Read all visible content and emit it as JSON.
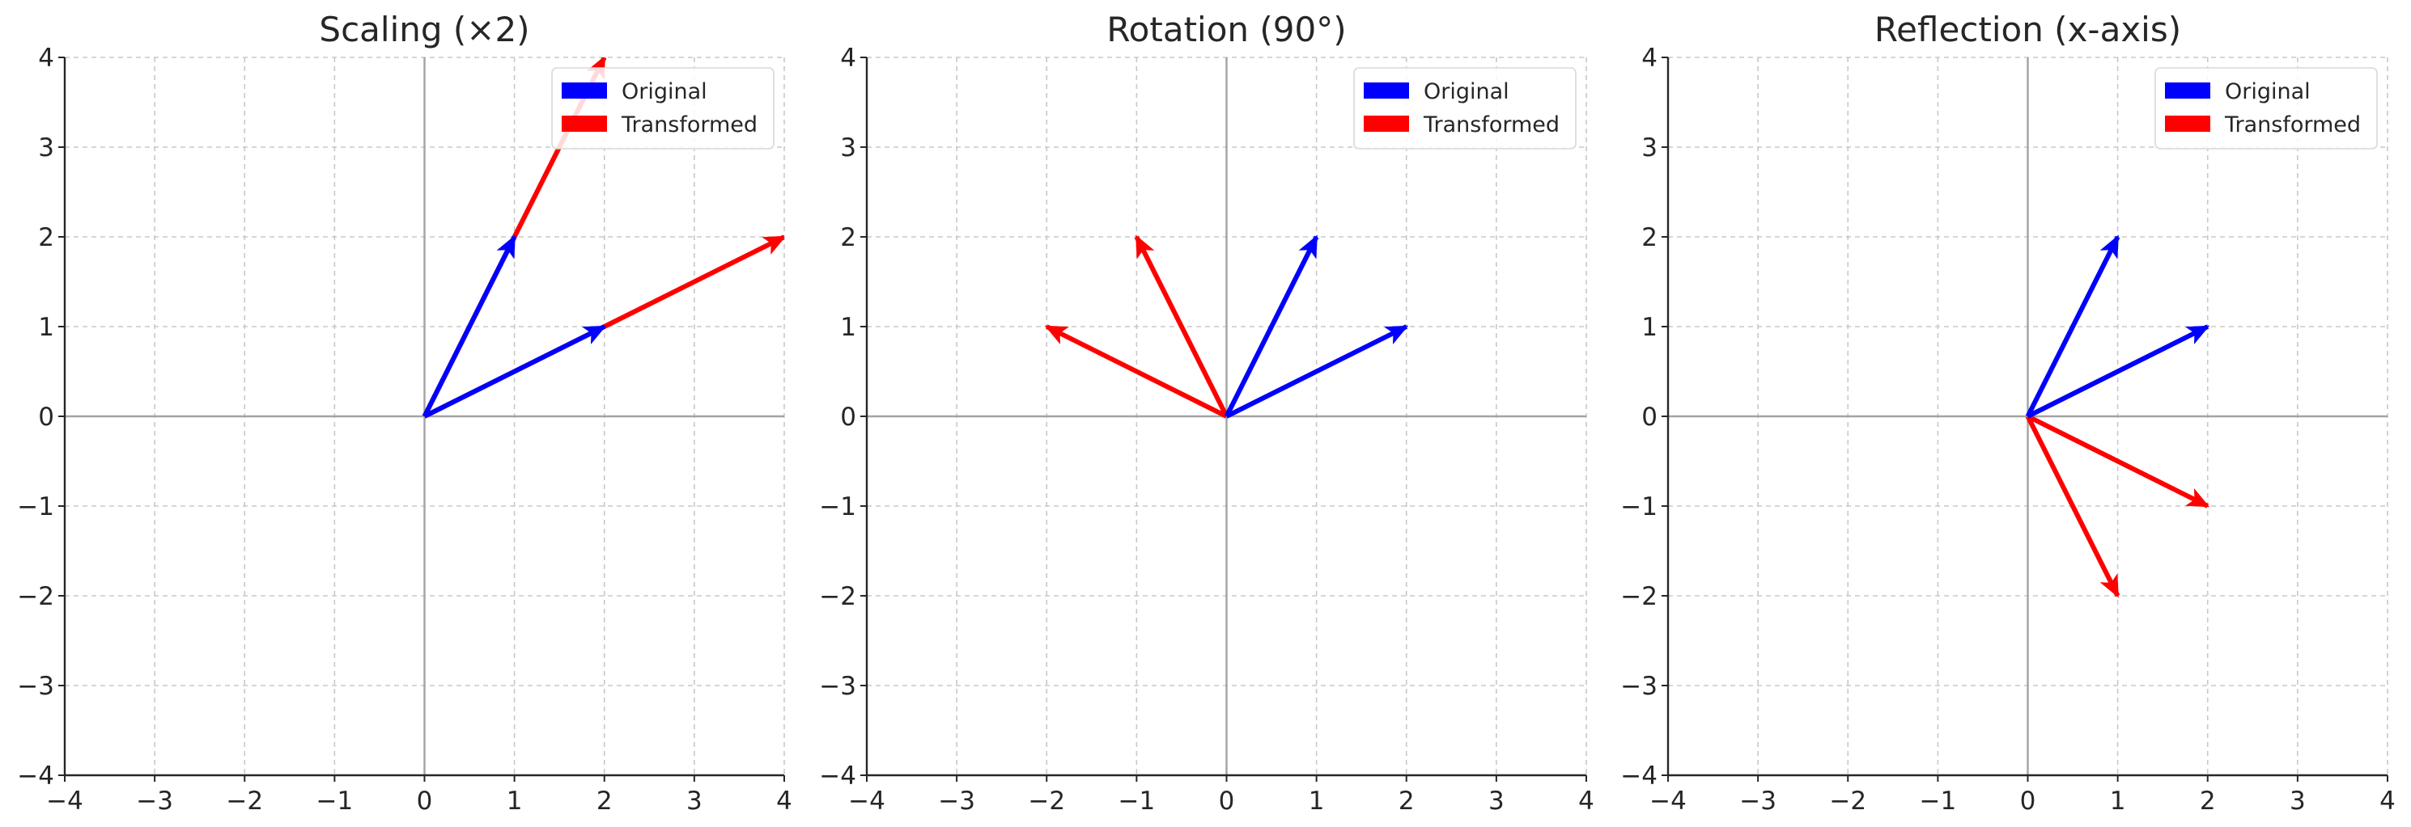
{
  "chart_data": [
    {
      "type": "vector_field",
      "title": "Scaling (×2)",
      "xlabel": "",
      "ylabel": "",
      "xlim": [
        -4,
        4
      ],
      "ylim": [
        -4,
        4
      ],
      "x_ticks": [
        "−4",
        "−3",
        "−2",
        "−1",
        "0",
        "1",
        "2",
        "3",
        "4"
      ],
      "y_ticks": [
        "−4",
        "−3",
        "−2",
        "−1",
        "0",
        "1",
        "2",
        "3",
        "4"
      ],
      "grid": true,
      "legend_position": "top-right",
      "series": [
        {
          "name": "Original",
          "color": "#0000ff",
          "vectors": [
            {
              "x0": 0,
              "y0": 0,
              "x1": 1,
              "y1": 2
            },
            {
              "x0": 0,
              "y0": 0,
              "x1": 2,
              "y1": 1
            }
          ]
        },
        {
          "name": "Transformed",
          "color": "#ff0000",
          "vectors": [
            {
              "x0": 0,
              "y0": 0,
              "x1": 2,
              "y1": 4
            },
            {
              "x0": 0,
              "y0": 0,
              "x1": 4,
              "y1": 2
            }
          ]
        }
      ]
    },
    {
      "type": "vector_field",
      "title": "Rotation (90°)",
      "xlabel": "",
      "ylabel": "",
      "xlim": [
        -4,
        4
      ],
      "ylim": [
        -4,
        4
      ],
      "x_ticks": [
        "−4",
        "−3",
        "−2",
        "−1",
        "0",
        "1",
        "2",
        "3",
        "4"
      ],
      "y_ticks": [
        "−4",
        "−3",
        "−2",
        "−1",
        "0",
        "1",
        "2",
        "3",
        "4"
      ],
      "grid": true,
      "legend_position": "top-right",
      "series": [
        {
          "name": "Original",
          "color": "#0000ff",
          "vectors": [
            {
              "x0": 0,
              "y0": 0,
              "x1": 1,
              "y1": 2
            },
            {
              "x0": 0,
              "y0": 0,
              "x1": 2,
              "y1": 1
            }
          ]
        },
        {
          "name": "Transformed",
          "color": "#ff0000",
          "vectors": [
            {
              "x0": 0,
              "y0": 0,
              "x1": -2,
              "y1": 1
            },
            {
              "x0": 0,
              "y0": 0,
              "x1": -1,
              "y1": 2
            }
          ]
        }
      ]
    },
    {
      "type": "vector_field",
      "title": "Reflection (x-axis)",
      "xlabel": "",
      "ylabel": "",
      "xlim": [
        -4,
        4
      ],
      "ylim": [
        -4,
        4
      ],
      "x_ticks": [
        "−4",
        "−3",
        "−2",
        "−1",
        "0",
        "1",
        "2",
        "3",
        "4"
      ],
      "y_ticks": [
        "−4",
        "−3",
        "−2",
        "−1",
        "0",
        "1",
        "2",
        "3",
        "4"
      ],
      "grid": true,
      "legend_position": "top-right",
      "series": [
        {
          "name": "Original",
          "color": "#0000ff",
          "vectors": [
            {
              "x0": 0,
              "y0": 0,
              "x1": 1,
              "y1": 2
            },
            {
              "x0": 0,
              "y0": 0,
              "x1": 2,
              "y1": 1
            }
          ]
        },
        {
          "name": "Transformed",
          "color": "#ff0000",
          "vectors": [
            {
              "x0": 0,
              "y0": 0,
              "x1": 1,
              "y1": -2
            },
            {
              "x0": 0,
              "y0": 0,
              "x1": 2,
              "y1": -1
            }
          ]
        }
      ]
    }
  ]
}
